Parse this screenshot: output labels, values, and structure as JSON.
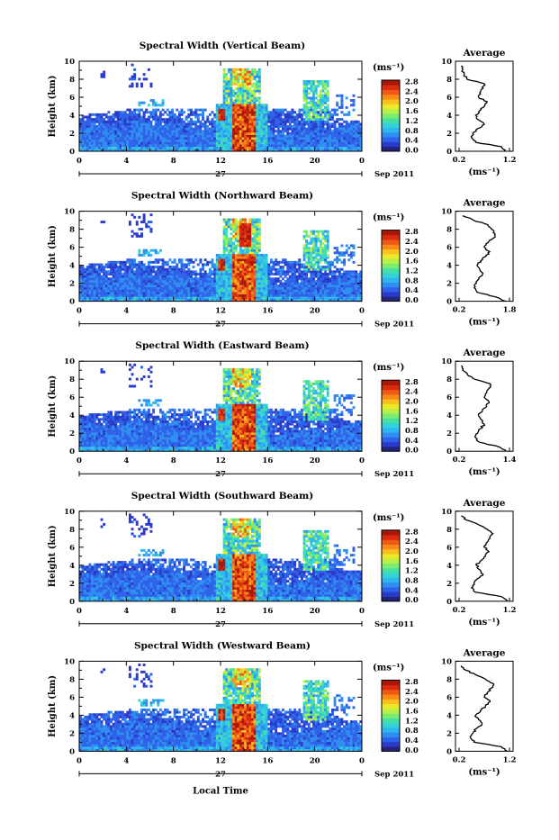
{
  "colors": {
    "scale": [
      "#24247a",
      "#2b3bc9",
      "#2f62e8",
      "#2f8ef0",
      "#2fb6f0",
      "#34d2d8",
      "#46e0a6",
      "#7cec70",
      "#b8f04a",
      "#eaea2a",
      "#f8c01e",
      "#f88a18",
      "#ee5a16",
      "#d82b10",
      "#a81808"
    ]
  },
  "panels": [
    {
      "title": "Spectral Width (Vertical Beam)",
      "avg_xticks": [
        "0.2",
        "1.2"
      ],
      "avg_xrange": [
        0.2,
        1.2
      ],
      "avg_profile": [
        [
          0,
          1.05
        ],
        [
          0.5,
          1.0
        ],
        [
          1,
          0.55
        ],
        [
          1.5,
          0.48
        ],
        [
          2,
          0.5
        ],
        [
          2.5,
          0.58
        ],
        [
          3,
          0.7
        ],
        [
          3.5,
          0.6
        ],
        [
          4,
          0.55
        ],
        [
          4.5,
          0.62
        ],
        [
          5,
          0.7
        ],
        [
          5.5,
          0.75
        ],
        [
          6,
          0.6
        ],
        [
          6.5,
          0.62
        ],
        [
          7,
          0.68
        ],
        [
          7.5,
          0.7
        ],
        [
          8,
          0.4
        ],
        [
          8.5,
          0.35
        ],
        [
          9,
          0.32
        ],
        [
          9.5,
          0.3
        ]
      ]
    },
    {
      "title": "Spectral Width (Northward Beam)",
      "avg_xticks": [
        "0.2",
        "1.8"
      ],
      "avg_xrange": [
        0.2,
        1.8
      ],
      "avg_profile": [
        [
          0,
          1.6
        ],
        [
          0.5,
          1.3
        ],
        [
          1,
          0.8
        ],
        [
          1.5,
          0.72
        ],
        [
          2,
          0.78
        ],
        [
          2.5,
          0.85
        ],
        [
          3,
          0.95
        ],
        [
          3.5,
          0.88
        ],
        [
          4,
          0.8
        ],
        [
          4.5,
          0.9
        ],
        [
          5,
          1.05
        ],
        [
          5.5,
          1.15
        ],
        [
          6,
          1.0
        ],
        [
          6.5,
          1.1
        ],
        [
          7,
          1.25
        ],
        [
          7.5,
          1.3
        ],
        [
          8,
          1.2
        ],
        [
          8.5,
          1.1
        ],
        [
          9,
          0.7
        ],
        [
          9.5,
          0.4
        ]
      ]
    },
    {
      "title": "Spectral Width (Eastward Beam)",
      "avg_xticks": [
        "0.2",
        "1.4"
      ],
      "avg_xrange": [
        0.2,
        1.4
      ],
      "avg_profile": [
        [
          0,
          1.25
        ],
        [
          0.5,
          1.1
        ],
        [
          1,
          0.7
        ],
        [
          1.5,
          0.62
        ],
        [
          2,
          0.66
        ],
        [
          2.5,
          0.72
        ],
        [
          3,
          0.8
        ],
        [
          3.5,
          0.74
        ],
        [
          4,
          0.68
        ],
        [
          4.5,
          0.76
        ],
        [
          5,
          0.85
        ],
        [
          5.5,
          0.9
        ],
        [
          6,
          0.8
        ],
        [
          6.5,
          0.85
        ],
        [
          7,
          0.9
        ],
        [
          7.5,
          0.92
        ],
        [
          8,
          0.6
        ],
        [
          8.5,
          0.45
        ],
        [
          9,
          0.35
        ],
        [
          9.5,
          0.32
        ]
      ]
    },
    {
      "title": "Spectral Width (Southward Beam)",
      "avg_xticks": [
        "0.2",
        "1.2"
      ],
      "avg_xrange": [
        0.2,
        1.2
      ],
      "avg_profile": [
        [
          0,
          1.1
        ],
        [
          0.5,
          1.0
        ],
        [
          1,
          0.55
        ],
        [
          1.5,
          0.48
        ],
        [
          2,
          0.52
        ],
        [
          2.5,
          0.58
        ],
        [
          3,
          0.68
        ],
        [
          3.5,
          0.62
        ],
        [
          4,
          0.56
        ],
        [
          4.5,
          0.64
        ],
        [
          5,
          0.72
        ],
        [
          5.5,
          0.78
        ],
        [
          6,
          0.7
        ],
        [
          6.5,
          0.74
        ],
        [
          7,
          0.8
        ],
        [
          7.5,
          0.85
        ],
        [
          8,
          0.75
        ],
        [
          8.5,
          0.6
        ],
        [
          9,
          0.4
        ],
        [
          9.5,
          0.3
        ]
      ]
    },
    {
      "title": "Spectral Width (Westward Beam)",
      "avg_xticks": [
        "0.2",
        "1.2"
      ],
      "avg_xrange": [
        0.2,
        1.2
      ],
      "avg_profile": [
        [
          0,
          1.1
        ],
        [
          0.5,
          1.0
        ],
        [
          1,
          0.52
        ],
        [
          1.5,
          0.46
        ],
        [
          2,
          0.5
        ],
        [
          2.5,
          0.56
        ],
        [
          3,
          0.66
        ],
        [
          3.5,
          0.6
        ],
        [
          4,
          0.55
        ],
        [
          4.5,
          0.63
        ],
        [
          5,
          0.72
        ],
        [
          5.5,
          0.8
        ],
        [
          6,
          0.7
        ],
        [
          6.5,
          0.75
        ],
        [
          7,
          0.82
        ],
        [
          7.5,
          0.86
        ],
        [
          8,
          0.72
        ],
        [
          8.5,
          0.55
        ],
        [
          9,
          0.38
        ],
        [
          9.5,
          0.3
        ]
      ]
    }
  ],
  "chart_data": {
    "type": "heatmap",
    "title": "",
    "xlabel": "Local Time",
    "ylabel": "Height (km)",
    "x_ticks": [
      "0",
      "4",
      "8",
      "12",
      "16",
      "20",
      "0"
    ],
    "xlim": [
      0,
      24
    ],
    "y_ticks": [
      "0",
      "2",
      "4",
      "6",
      "8",
      "10"
    ],
    "ylim": [
      0,
      10
    ],
    "date_day": "27",
    "date_month": "Sep 2011",
    "colorbar": {
      "unit": "(ms⁻¹)",
      "ticks": [
        "0.0",
        "0.4",
        "0.8",
        "1.2",
        "1.6",
        "2.0",
        "2.4",
        "2.8"
      ],
      "range": [
        0,
        2.8
      ]
    },
    "avg_title": "Average",
    "avg_xlabel": "(ms⁻¹)",
    "avg_yticks": [
      "0",
      "2",
      "4",
      "6",
      "8",
      "10"
    ],
    "note": "five stacked time-height panels of spectral width; each panel with a vertical average profile"
  }
}
